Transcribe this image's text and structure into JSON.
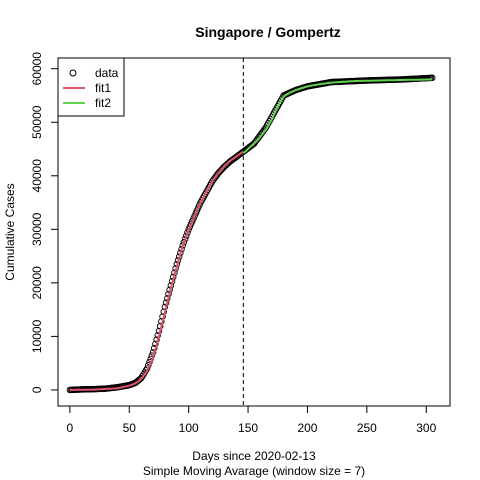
{
  "chart_data": {
    "type": "scatter",
    "title": "Singapore / Gompertz",
    "xlabel": "Days since 2020-02-13",
    "xlabel2": "Simple Moving Avarage (window size = 7)",
    "ylabel": "Cumulative Cases",
    "xlim": [
      -10,
      320
    ],
    "ylim": [
      -3000,
      62000
    ],
    "xticks": [
      0,
      50,
      100,
      150,
      200,
      250,
      300
    ],
    "yticks": [
      0,
      10000,
      20000,
      30000,
      40000,
      50000,
      60000
    ],
    "xtick_labels": [
      "0",
      "50",
      "100",
      "150",
      "200",
      "250",
      "300"
    ],
    "ytick_labels": [
      "0",
      "10000",
      "20000",
      "30000",
      "40000",
      "50000",
      "60000"
    ],
    "vline_x": 146,
    "legend": {
      "position": "top-left",
      "entries": [
        {
          "label": "data",
          "color": "#000000",
          "kind": "point"
        },
        {
          "label": "fit1",
          "color": "#DF536B",
          "kind": "line"
        },
        {
          "label": "fit2",
          "color": "#61D04F",
          "kind": "line"
        }
      ]
    },
    "series": [
      {
        "name": "data",
        "kind": "points",
        "color": "#000000",
        "points": [
          [
            0,
            0
          ],
          [
            10,
            100
          ],
          [
            20,
            150
          ],
          [
            30,
            250
          ],
          [
            40,
            500
          ],
          [
            45,
            700
          ],
          [
            50,
            900
          ],
          [
            55,
            1300
          ],
          [
            60,
            2200
          ],
          [
            65,
            4000
          ],
          [
            70,
            7000
          ],
          [
            75,
            11000
          ],
          [
            80,
            15500
          ],
          [
            85,
            19500
          ],
          [
            90,
            23500
          ],
          [
            95,
            27000
          ],
          [
            100,
            30000
          ],
          [
            105,
            32500
          ],
          [
            110,
            35000
          ],
          [
            115,
            37000
          ],
          [
            120,
            39000
          ],
          [
            125,
            40500
          ],
          [
            130,
            41700
          ],
          [
            135,
            42700
          ],
          [
            140,
            43500
          ],
          [
            146,
            44500
          ],
          [
            155,
            46000
          ],
          [
            165,
            49000
          ],
          [
            175,
            53000
          ],
          [
            180,
            55000
          ],
          [
            190,
            56000
          ],
          [
            200,
            56700
          ],
          [
            220,
            57500
          ],
          [
            250,
            57800
          ],
          [
            280,
            58000
          ],
          [
            305,
            58300
          ]
        ]
      },
      {
        "name": "fit1",
        "kind": "line",
        "color": "#DF536B",
        "points": [
          [
            0,
            0
          ],
          [
            20,
            60
          ],
          [
            40,
            300
          ],
          [
            50,
            800
          ],
          [
            55,
            1200
          ],
          [
            60,
            2000
          ],
          [
            65,
            3500
          ],
          [
            70,
            6000
          ],
          [
            75,
            10000
          ],
          [
            80,
            14500
          ],
          [
            85,
            19000
          ],
          [
            90,
            23000
          ],
          [
            95,
            26800
          ],
          [
            100,
            29800
          ],
          [
            105,
            32500
          ],
          [
            110,
            35000
          ],
          [
            115,
            37000
          ],
          [
            120,
            39000
          ],
          [
            125,
            40500
          ],
          [
            130,
            41800
          ],
          [
            135,
            42800
          ],
          [
            140,
            43600
          ],
          [
            146,
            44500
          ]
        ]
      },
      {
        "name": "fit2",
        "kind": "line",
        "color": "#61D04F",
        "points": [
          [
            146,
            44200
          ],
          [
            150,
            45000
          ],
          [
            155,
            46000
          ],
          [
            160,
            47200
          ],
          [
            165,
            48600
          ],
          [
            170,
            50500
          ],
          [
            175,
            53000
          ],
          [
            180,
            54800
          ],
          [
            185,
            55500
          ],
          [
            190,
            56000
          ],
          [
            200,
            56700
          ],
          [
            210,
            57100
          ],
          [
            220,
            57400
          ],
          [
            240,
            57700
          ],
          [
            260,
            57800
          ],
          [
            280,
            57900
          ],
          [
            305,
            58000
          ]
        ]
      }
    ]
  }
}
